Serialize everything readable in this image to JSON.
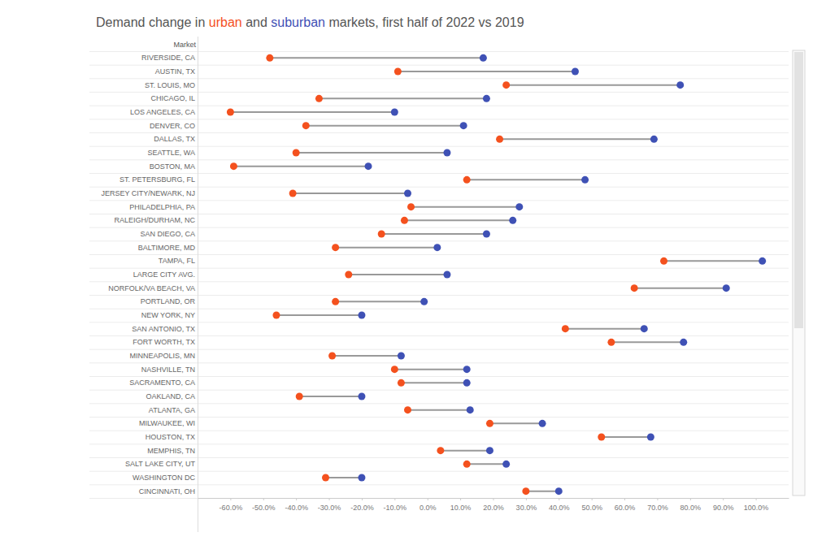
{
  "chart_data": {
    "type": "dumbbell",
    "orientation": "horizontal",
    "title": "Demand change in urban and suburban markets, first half of 2022 vs 2019",
    "ylabel": "Market",
    "categories": [
      "RIVERSIDE, CA",
      "AUSTIN, TX",
      "ST. LOUIS, MO",
      "CHICAGO, IL",
      "LOS ANGELES, CA",
      "DENVER, CO",
      "DALLAS, TX",
      "SEATTLE, WA",
      "BOSTON, MA",
      "ST. PETERSBURG, FL",
      "JERSEY CITY/NEWARK, NJ",
      "PHILADELPHIA, PA",
      "RALEIGH/DURHAM, NC",
      "SAN DIEGO, CA",
      "BALTIMORE, MD",
      "TAMPA, FL",
      "LARGE CITY AVG.",
      "NORFOLK/VA BEACH, VA",
      "PORTLAND, OR",
      "NEW YORK, NY",
      "SAN ANTONIO, TX",
      "FORT WORTH, TX",
      "MINNEAPOLIS, MN",
      "NASHVILLE, TN",
      "SACRAMENTO, CA",
      "OAKLAND, CA",
      "ATLANTA, GA",
      "MILWAUKEE, WI",
      "HOUSTON, TX",
      "MEMPHIS, TN",
      "SALT LAKE CITY, UT",
      "WASHINGTON DC",
      "CINCINNATI, OH"
    ],
    "series": [
      {
        "name": "urban",
        "color": "#f4511e",
        "values": [
          -48,
          -9,
          24,
          -33,
          -60,
          -37,
          22,
          -40,
          -59,
          12,
          -41,
          -5,
          -7,
          -14,
          -28,
          72,
          -24,
          63,
          -28,
          -46,
          42,
          56,
          -29,
          -10,
          -8,
          -39,
          -6,
          19,
          53,
          4,
          12,
          -31,
          30
        ]
      },
      {
        "name": "suburban",
        "color": "#3f51b5",
        "values": [
          17,
          45,
          77,
          18,
          -10,
          11,
          69,
          6,
          -18,
          48,
          -6,
          28,
          26,
          18,
          3,
          102,
          6,
          91,
          -1,
          -20,
          66,
          78,
          -8,
          12,
          12,
          -20,
          13,
          35,
          68,
          19,
          24,
          -20,
          40
        ]
      }
    ],
    "xlim": [
      -70,
      110
    ],
    "xticks": [
      {
        "value": -60,
        "label": "-60.0%"
      },
      {
        "value": -50,
        "label": "-50.0%"
      },
      {
        "value": -40,
        "label": "-40.0%"
      },
      {
        "value": -30,
        "label": "-30.0%"
      },
      {
        "value": -20,
        "label": "-20.0%"
      },
      {
        "value": -10,
        "label": "-10.0%"
      },
      {
        "value": 0,
        "label": "0.0%"
      },
      {
        "value": 10,
        "label": "10.0%"
      },
      {
        "value": 20,
        "label": "20.0%"
      },
      {
        "value": 30,
        "label": "30.0%"
      },
      {
        "value": 40,
        "label": "40.0%"
      },
      {
        "value": 50,
        "label": "50.0%"
      },
      {
        "value": 60,
        "label": "60.0%"
      },
      {
        "value": 70,
        "label": "70.0%"
      },
      {
        "value": 80,
        "label": "80.0%"
      },
      {
        "value": 90,
        "label": "90.0%"
      },
      {
        "value": 100,
        "label": "100.0%"
      }
    ]
  }
}
